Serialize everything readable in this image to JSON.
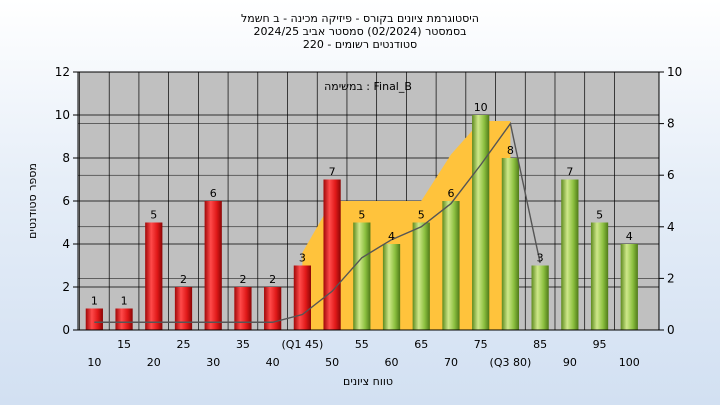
{
  "chart_data": {
    "type": "bar",
    "title_lines": [
      "היסטוגרמת ציונים בקורס - פיזיקה מכינה - ב חשמל",
      "בסמסטר  (02/2024)  סמסטר אביב 2024/25",
      "סטודנטים רשומים - 220"
    ],
    "annotation": "במשימה : Final_B",
    "xlabel": "טווח ציונים",
    "ylabel": "מספר סטודנטים",
    "categories": [
      "10",
      "15",
      "20",
      "25",
      "30",
      "35",
      "40",
      "45",
      "50",
      "55",
      "60",
      "65",
      "70",
      "75",
      "80",
      "85",
      "90",
      "95",
      "100"
    ],
    "x_tick_labels": [
      "10",
      "15",
      "20",
      "25",
      "30",
      "35",
      "40",
      "(Q1 45)",
      "50",
      "55",
      "60",
      "65",
      "70",
      "75",
      "(Q3 80)",
      "85",
      "90",
      "95",
      "100"
    ],
    "values": [
      1,
      1,
      5,
      2,
      6,
      2,
      2,
      3,
      7,
      5,
      4,
      5,
      6,
      10,
      8,
      3,
      7,
      5,
      4
    ],
    "bar_colors": [
      "red",
      "red",
      "red",
      "red",
      "red",
      "red",
      "red",
      "red",
      "red",
      "green",
      "green",
      "green",
      "green",
      "green",
      "green",
      "green",
      "green",
      "green",
      "green"
    ],
    "ylim": [
      0,
      12
    ],
    "y_ticks": [
      0,
      2,
      4,
      6,
      8,
      10,
      12
    ],
    "y2lim": [
      0,
      10
    ],
    "y2_ticks": [
      0,
      2,
      4,
      6,
      8,
      10
    ],
    "band": {
      "x": [
        "45",
        "50",
        "55",
        "60",
        "65",
        "70",
        "75",
        "80"
      ],
      "values": [
        3,
        5,
        5,
        5,
        5,
        6.8,
        8.1,
        8.1
      ]
    },
    "cumulative_line": {
      "x": [
        "10",
        "15",
        "20",
        "25",
        "30",
        "35",
        "40",
        "45",
        "50",
        "55",
        "60",
        "65",
        "70",
        "75",
        "80",
        "85"
      ],
      "values": [
        0.3,
        0.3,
        0.3,
        0.3,
        0.3,
        0.3,
        0.3,
        0.6,
        1.5,
        2.8,
        3.5,
        4.0,
        4.9,
        6.4,
        8.0,
        2.6
      ]
    },
    "grid": true,
    "legend": "none",
    "colors": {
      "plot_bg": "#c0c0c0",
      "red_bar": "#e01818",
      "green_bar": "#8cc040",
      "band": "#ffc33c",
      "frame": "#000000"
    }
  }
}
